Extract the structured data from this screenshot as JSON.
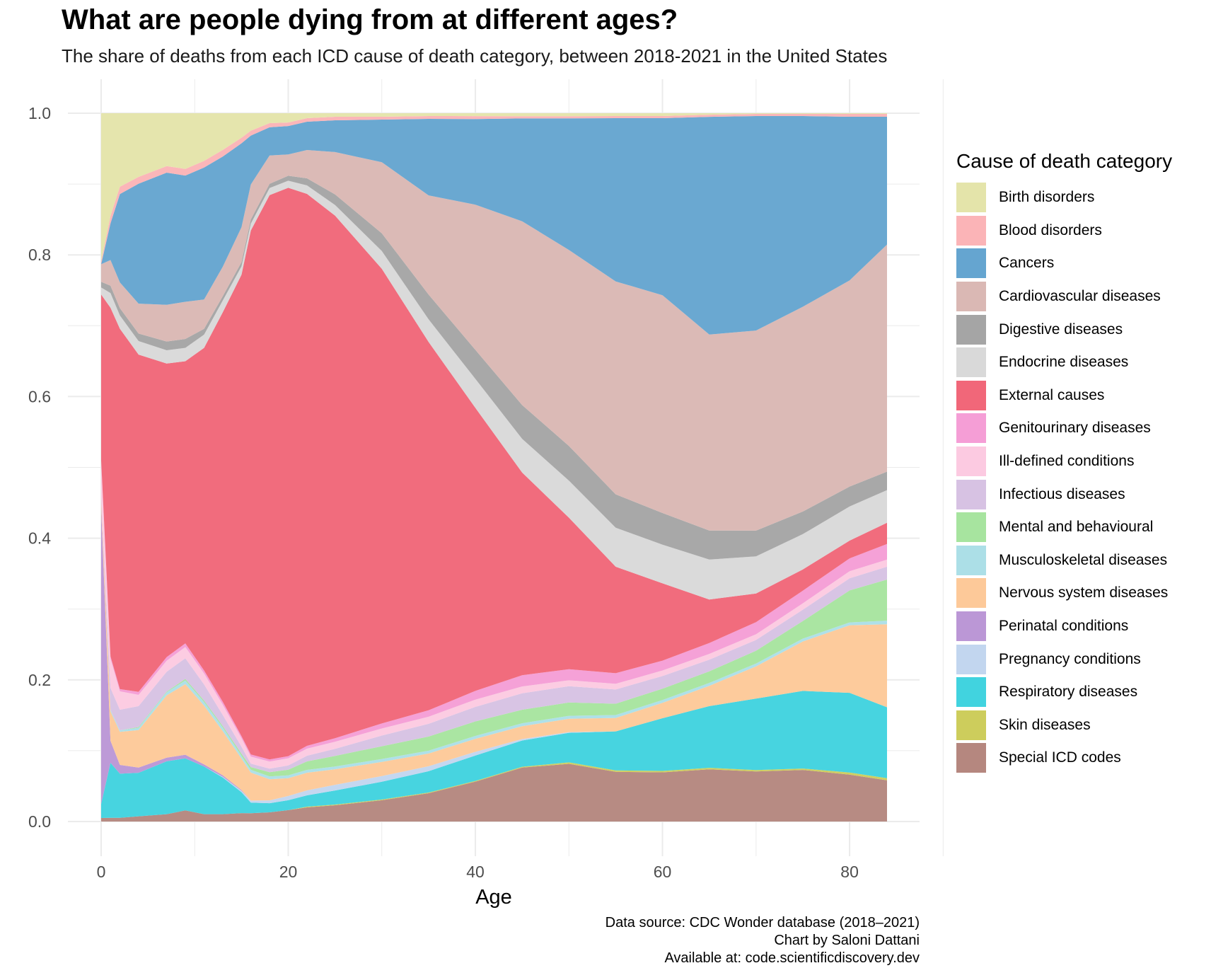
{
  "title": "What are people dying from at different ages?",
  "subtitle": "The share of deaths from each ICD cause of death category, between 2018-2021 in the United States",
  "caption": {
    "line1": "Data source: CDC Wonder database (2018–2021)",
    "line2": "Chart by Saloni Dattani",
    "line3": "Available at: code.scientificdiscovery.dev"
  },
  "legend": {
    "title": "Cause of death category"
  },
  "chart_data": {
    "type": "area",
    "stacked": true,
    "normalized": true,
    "xlabel": "Age",
    "ylabel": "",
    "xlim": [
      0,
      84
    ],
    "ylim": [
      0,
      1
    ],
    "x_ticks": [
      0,
      20,
      40,
      60,
      80
    ],
    "y_ticks": [
      "0.0",
      "0.2",
      "0.4",
      "0.6",
      "0.8",
      "1.0"
    ],
    "grid": true,
    "legend_position": "right",
    "x": [
      0,
      1,
      2,
      4,
      7,
      9,
      11,
      13,
      15,
      16,
      18,
      20,
      22,
      25,
      30,
      35,
      40,
      45,
      50,
      55,
      60,
      65,
      70,
      75,
      80,
      84
    ],
    "series": [
      {
        "name": "Special ICD codes",
        "color": "#b5877f",
        "values": [
          0.005,
          0.005,
          0.005,
          0.007,
          0.01,
          0.015,
          0.01,
          0.01,
          0.012,
          0.012,
          0.013,
          0.016,
          0.02,
          0.023,
          0.03,
          0.04,
          0.055,
          0.072,
          0.078,
          0.07,
          0.07,
          0.072,
          0.07,
          0.073,
          0.066,
          0.058
        ]
      },
      {
        "name": "Skin diseases",
        "color": "#cdcd5c",
        "values": [
          0,
          0,
          0,
          0,
          0,
          0,
          0,
          0,
          0,
          0,
          0,
          0,
          0.001,
          0.001,
          0.001,
          0.001,
          0.001,
          0.001,
          0.002,
          0.002,
          0.002,
          0.002,
          0.002,
          0.002,
          0.003,
          0.003
        ]
      },
      {
        "name": "Respiratory diseases",
        "color": "#41d3df",
        "values": [
          0.02,
          0.075,
          0.06,
          0.058,
          0.072,
          0.07,
          0.065,
          0.05,
          0.03,
          0.015,
          0.013,
          0.014,
          0.016,
          0.02,
          0.025,
          0.03,
          0.035,
          0.035,
          0.04,
          0.055,
          0.075,
          0.085,
          0.1,
          0.11,
          0.112,
          0.1
        ]
      },
      {
        "name": "Pregnancy conditions",
        "color": "#c2d6ef",
        "values": [
          0,
          0,
          0,
          0,
          0,
          0,
          0,
          0.001,
          0.002,
          0.003,
          0.004,
          0.006,
          0.007,
          0.008,
          0.008,
          0.007,
          0.005,
          0.002,
          0.001,
          0,
          0,
          0,
          0,
          0,
          0,
          0
        ]
      },
      {
        "name": "Perinatal conditions",
        "color": "#bb97d6",
        "values": [
          0.42,
          0.03,
          0.012,
          0.007,
          0.005,
          0.005,
          0.003,
          0.002,
          0.001,
          0,
          0,
          0,
          0,
          0,
          0,
          0,
          0,
          0,
          0,
          0,
          0,
          0,
          0,
          0,
          0,
          0
        ]
      },
      {
        "name": "Nervous system diseases",
        "color": "#fdc999",
        "values": [
          0.01,
          0.04,
          0.045,
          0.05,
          0.085,
          0.095,
          0.08,
          0.06,
          0.045,
          0.04,
          0.03,
          0.025,
          0.025,
          0.022,
          0.02,
          0.018,
          0.018,
          0.017,
          0.018,
          0.019,
          0.022,
          0.028,
          0.045,
          0.07,
          0.095,
          0.117
        ]
      },
      {
        "name": "Musculoskeletal diseases",
        "color": "#acdfe7",
        "values": [
          0,
          0.002,
          0.002,
          0.003,
          0.004,
          0.005,
          0.005,
          0.005,
          0.004,
          0.004,
          0.004,
          0.004,
          0.004,
          0.004,
          0.004,
          0.004,
          0.004,
          0.004,
          0.004,
          0.004,
          0.004,
          0.004,
          0.004,
          0.004,
          0.004,
          0.005
        ]
      },
      {
        "name": "Mental and behavioural",
        "color": "#a7e49f",
        "values": [
          0,
          0,
          0,
          0.001,
          0.001,
          0.002,
          0.002,
          0.002,
          0.003,
          0.004,
          0.006,
          0.008,
          0.012,
          0.015,
          0.018,
          0.02,
          0.02,
          0.018,
          0.018,
          0.016,
          0.016,
          0.016,
          0.018,
          0.025,
          0.045,
          0.058
        ]
      },
      {
        "name": "Infectious diseases",
        "color": "#d7c2e3",
        "values": [
          0.005,
          0.03,
          0.028,
          0.028,
          0.027,
          0.028,
          0.022,
          0.015,
          0.01,
          0.005,
          0.005,
          0.006,
          0.008,
          0.01,
          0.015,
          0.018,
          0.02,
          0.022,
          0.022,
          0.02,
          0.018,
          0.016,
          0.015,
          0.016,
          0.017,
          0.018
        ]
      },
      {
        "name": "Ill-defined conditions",
        "color": "#fccae1",
        "values": [
          0.05,
          0.04,
          0.025,
          0.015,
          0.015,
          0.015,
          0.015,
          0.014,
          0.012,
          0.01,
          0.01,
          0.01,
          0.01,
          0.01,
          0.01,
          0.01,
          0.01,
          0.009,
          0.008,
          0.008,
          0.008,
          0.008,
          0.008,
          0.009,
          0.01,
          0.01
        ]
      },
      {
        "name": "Genitourinary diseases",
        "color": "#f59ed6",
        "values": [
          0.002,
          0.003,
          0.003,
          0.004,
          0.005,
          0.005,
          0.004,
          0.004,
          0.003,
          0.003,
          0.003,
          0.003,
          0.004,
          0.005,
          0.007,
          0.009,
          0.012,
          0.015,
          0.015,
          0.015,
          0.014,
          0.015,
          0.017,
          0.018,
          0.018,
          0.022
        ]
      },
      {
        "name": "External causes",
        "color": "#f16779",
        "values": [
          0.235,
          0.475,
          0.49,
          0.45,
          0.4,
          0.38,
          0.44,
          0.53,
          0.66,
          0.75,
          0.8,
          0.8,
          0.78,
          0.74,
          0.64,
          0.52,
          0.39,
          0.27,
          0.205,
          0.15,
          0.11,
          0.06,
          0.04,
          0.03,
          0.025,
          0.03
        ]
      },
      {
        "name": "Endocrine diseases",
        "color": "#d9d9d9",
        "values": [
          0.01,
          0.02,
          0.018,
          0.018,
          0.018,
          0.018,
          0.018,
          0.016,
          0.012,
          0.01,
          0.01,
          0.01,
          0.012,
          0.015,
          0.025,
          0.032,
          0.04,
          0.045,
          0.05,
          0.055,
          0.055,
          0.055,
          0.052,
          0.05,
          0.048,
          0.046
        ]
      },
      {
        "name": "Digestive diseases",
        "color": "#a5a5a5",
        "values": [
          0.008,
          0.01,
          0.01,
          0.01,
          0.012,
          0.012,
          0.008,
          0.006,
          0.006,
          0.006,
          0.006,
          0.007,
          0.01,
          0.015,
          0.025,
          0.035,
          0.04,
          0.045,
          0.047,
          0.047,
          0.045,
          0.04,
          0.036,
          0.032,
          0.028,
          0.026
        ]
      },
      {
        "name": "Cardiovascular diseases",
        "color": "#dab8b4",
        "values": [
          0.025,
          0.035,
          0.035,
          0.04,
          0.05,
          0.05,
          0.04,
          0.04,
          0.05,
          0.05,
          0.04,
          0.03,
          0.04,
          0.06,
          0.1,
          0.14,
          0.2,
          0.245,
          0.265,
          0.3,
          0.31,
          0.27,
          0.28,
          0.29,
          0.29,
          0.32
        ]
      },
      {
        "name": "Cancers",
        "color": "#65a5d0",
        "values": [
          0,
          0.05,
          0.12,
          0.16,
          0.18,
          0.17,
          0.18,
          0.15,
          0.12,
          0.07,
          0.04,
          0.04,
          0.04,
          0.045,
          0.06,
          0.108,
          0.118,
          0.137,
          0.178,
          0.23,
          0.252,
          0.3,
          0.3,
          0.27,
          0.23,
          0.18
        ]
      },
      {
        "name": "Blood disorders",
        "color": "#fbb4b7",
        "values": [
          0.004,
          0.01,
          0.01,
          0.009,
          0.009,
          0.009,
          0.009,
          0.009,
          0.008,
          0.007,
          0.006,
          0.005,
          0.005,
          0.005,
          0.004,
          0.004,
          0.004,
          0.003,
          0.003,
          0.003,
          0.003,
          0.003,
          0.003,
          0.003,
          0.004,
          0.004
        ]
      },
      {
        "name": "Birth disorders",
        "color": "#e4e4aa",
        "values": [
          0.21,
          0.14,
          0.1,
          0.085,
          0.072,
          0.075,
          0.065,
          0.05,
          0.035,
          0.025,
          0.014,
          0.013,
          0.007,
          0.005,
          0.005,
          0.004,
          0.004,
          0.004,
          0.004,
          0.004,
          0.004,
          0.002,
          0.001,
          0.001,
          0.001,
          0.001
        ]
      }
    ]
  }
}
